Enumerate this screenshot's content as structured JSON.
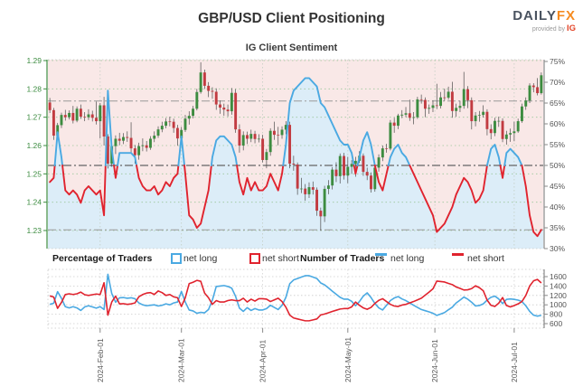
{
  "header": {
    "title": "GBP/USD Client Positioning",
    "logo": {
      "daily": "DAILY",
      "fx": "FX",
      "provided_by": "provided by",
      "ig": "IG"
    }
  },
  "subtitle": "IG Client Sentiment",
  "legend": {
    "pct_group": "Percentage of Traders",
    "num_group": "Number of Traders",
    "net_long": "net long",
    "net_short": "net short"
  },
  "chart_data": {
    "type": [
      "candlestick",
      "line"
    ],
    "title": "IG Client Sentiment",
    "legend_position": "below-main-chart",
    "grid": true,
    "colors": {
      "net_long": "#4aa9e2",
      "net_short": "#e0232e",
      "candle_up": "#3d8c40",
      "candle_down": "#c23b41",
      "wick": "#4d4d4d",
      "fill_long_region": "#dcedf8",
      "fill_short_region": "#f9e8e7",
      "price_axis": "#3c8c40",
      "pct_axis": "#555555",
      "grid_green": "#9cc79c",
      "grid_grey": "#cccccc",
      "ref_line": "#8a8a8a"
    },
    "price_axis": {
      "side": "left",
      "range": [
        1.23,
        1.29
      ],
      "ticks": [
        {
          "v": 1.29,
          "label": "1.29"
        },
        {
          "v": 1.28,
          "label": "1.28"
        },
        {
          "v": 1.27,
          "label": "1.27"
        },
        {
          "v": 1.26,
          "label": "1.26"
        },
        {
          "v": 1.25,
          "label": "1.25"
        },
        {
          "v": 1.24,
          "label": "1.24"
        },
        {
          "v": 1.23,
          "label": "1.23"
        }
      ]
    },
    "pct_axis": {
      "side": "right",
      "range": [
        30,
        75
      ],
      "ticks": [
        {
          "v": 75,
          "label": "75%"
        },
        {
          "v": 70,
          "label": "70%"
        },
        {
          "v": 65,
          "label": "65%"
        },
        {
          "v": 60,
          "label": "60%"
        },
        {
          "v": 55,
          "label": "55%"
        },
        {
          "v": 50,
          "label": "50%"
        },
        {
          "v": 45,
          "label": "45%"
        },
        {
          "v": 40,
          "label": "40%"
        },
        {
          "v": 35,
          "label": "35%"
        },
        {
          "v": 30,
          "label": "30%"
        }
      ]
    },
    "count_axis": {
      "side": "right",
      "range": [
        500,
        1700
      ],
      "ticks": [
        {
          "v": 1600,
          "label": "1600"
        },
        {
          "v": 1400,
          "label": "1400"
        },
        {
          "v": 1200,
          "label": "1200"
        },
        {
          "v": 1000,
          "label": "1000"
        },
        {
          "v": 800,
          "label": "800"
        },
        {
          "v": 600,
          "label": "600"
        }
      ]
    },
    "x_ticks": [
      {
        "label": "2024-Feb-01",
        "i": 13
      },
      {
        "label": "2024-Mar-01",
        "i": 34
      },
      {
        "label": "2024-Apr-01",
        "i": 55
      },
      {
        "label": "2024-May-01",
        "i": 77
      },
      {
        "label": "2024-Jun-01",
        "i": 99.5
      },
      {
        "label": "2024-Jul-01",
        "i": 120
      }
    ],
    "reference_lines_pct": {
      "mid": 50,
      "current_net_short": 65.5,
      "current_net_long": 34.5
    },
    "candles_ohlc": [
      [
        1.2752,
        1.2768,
        1.2715,
        1.2725
      ],
      [
        1.2725,
        1.2733,
        1.262,
        1.2635
      ],
      [
        1.2635,
        1.268,
        1.2625,
        1.2672
      ],
      [
        1.2672,
        1.2716,
        1.2662,
        1.2708
      ],
      [
        1.2708,
        1.2726,
        1.2688,
        1.27
      ],
      [
        1.27,
        1.2724,
        1.2692,
        1.2715
      ],
      [
        1.2715,
        1.274,
        1.2678,
        1.2688
      ],
      [
        1.2688,
        1.2738,
        1.2682,
        1.273
      ],
      [
        1.273,
        1.2745,
        1.2694,
        1.2702
      ],
      [
        1.2702,
        1.2718,
        1.2686,
        1.27
      ],
      [
        1.27,
        1.2728,
        1.269,
        1.271
      ],
      [
        1.271,
        1.2723,
        1.2685,
        1.2698
      ],
      [
        1.2698,
        1.2755,
        1.2674,
        1.2686
      ],
      [
        1.2686,
        1.275,
        1.2625,
        1.2742
      ],
      [
        1.2742,
        1.2772,
        1.26,
        1.2632
      ],
      [
        1.2632,
        1.264,
        1.2519,
        1.2536
      ],
      [
        1.2536,
        1.261,
        1.2525,
        1.2598
      ],
      [
        1.2598,
        1.2636,
        1.257,
        1.2624
      ],
      [
        1.2624,
        1.2645,
        1.2601,
        1.2617
      ],
      [
        1.2617,
        1.2644,
        1.2605,
        1.263
      ],
      [
        1.263,
        1.265,
        1.2613,
        1.2627
      ],
      [
        1.2627,
        1.2682,
        1.2574,
        1.259
      ],
      [
        1.259,
        1.2602,
        1.2536,
        1.2566
      ],
      [
        1.2566,
        1.261,
        1.255,
        1.2598
      ],
      [
        1.2598,
        1.2625,
        1.258,
        1.2601
      ],
      [
        1.2601,
        1.2616,
        1.2579,
        1.2592
      ],
      [
        1.2592,
        1.2633,
        1.2585,
        1.2624
      ],
      [
        1.2624,
        1.265,
        1.2612,
        1.2635
      ],
      [
        1.2635,
        1.2668,
        1.2627,
        1.2657
      ],
      [
        1.2657,
        1.2684,
        1.2647,
        1.267
      ],
      [
        1.267,
        1.2697,
        1.2661,
        1.2685
      ],
      [
        1.2685,
        1.2702,
        1.2668,
        1.2684
      ],
      [
        1.2684,
        1.2695,
        1.2645,
        1.2662
      ],
      [
        1.2662,
        1.2673,
        1.2599,
        1.2625
      ],
      [
        1.2625,
        1.2666,
        1.2614,
        1.2655
      ],
      [
        1.2655,
        1.2708,
        1.2648,
        1.2695
      ],
      [
        1.2695,
        1.2721,
        1.2674,
        1.2705
      ],
      [
        1.2705,
        1.274,
        1.2696,
        1.273
      ],
      [
        1.273,
        1.28,
        1.2724,
        1.2789
      ],
      [
        1.2789,
        1.2894,
        1.2783,
        1.2858
      ],
      [
        1.2858,
        1.2868,
        1.28,
        1.2811
      ],
      [
        1.2811,
        1.2824,
        1.2771,
        1.2793
      ],
      [
        1.2793,
        1.2806,
        1.2765,
        1.279
      ],
      [
        1.279,
        1.2802,
        1.2726,
        1.2745
      ],
      [
        1.2745,
        1.2759,
        1.2712,
        1.2734
      ],
      [
        1.2734,
        1.2748,
        1.2705,
        1.2727
      ],
      [
        1.2727,
        1.2745,
        1.2703,
        1.2721
      ],
      [
        1.2721,
        1.2803,
        1.2709,
        1.2786
      ],
      [
        1.2786,
        1.2799,
        1.2645,
        1.2657
      ],
      [
        1.2657,
        1.2675,
        1.2575,
        1.26
      ],
      [
        1.26,
        1.265,
        1.2583,
        1.2637
      ],
      [
        1.2637,
        1.2649,
        1.2605,
        1.2624
      ],
      [
        1.2624,
        1.2656,
        1.2612,
        1.2641
      ],
      [
        1.2641,
        1.2652,
        1.2608,
        1.2623
      ],
      [
        1.2623,
        1.264,
        1.2611,
        1.2624
      ],
      [
        1.2624,
        1.2638,
        1.254,
        1.2549
      ],
      [
        1.2549,
        1.2588,
        1.252,
        1.2577
      ],
      [
        1.2577,
        1.2661,
        1.2564,
        1.2652
      ],
      [
        1.2652,
        1.2684,
        1.262,
        1.2638
      ],
      [
        1.2638,
        1.2666,
        1.2601,
        1.2637
      ],
      [
        1.2637,
        1.2668,
        1.2624,
        1.2656
      ],
      [
        1.2656,
        1.2686,
        1.264,
        1.2673
      ],
      [
        1.2673,
        1.2684,
        1.252,
        1.2536
      ],
      [
        1.2536,
        1.2564,
        1.2511,
        1.2533
      ],
      [
        1.2533,
        1.254,
        1.2426,
        1.2448
      ],
      [
        1.2448,
        1.2486,
        1.2432,
        1.2448
      ],
      [
        1.2448,
        1.2464,
        1.2405,
        1.2428
      ],
      [
        1.2428,
        1.247,
        1.2415,
        1.2453
      ],
      [
        1.2453,
        1.2473,
        1.2427,
        1.2444
      ],
      [
        1.2444,
        1.2452,
        1.2352,
        1.237
      ],
      [
        1.237,
        1.2381,
        1.2299,
        1.235
      ],
      [
        1.235,
        1.2458,
        1.233,
        1.2447
      ],
      [
        1.2447,
        1.2478,
        1.2428,
        1.2459
      ],
      [
        1.2459,
        1.2524,
        1.2445,
        1.2515
      ],
      [
        1.2515,
        1.2541,
        1.2471,
        1.2492
      ],
      [
        1.2492,
        1.2572,
        1.2466,
        1.2563
      ],
      [
        1.2563,
        1.2574,
        1.248,
        1.2494
      ],
      [
        1.2494,
        1.256,
        1.2467,
        1.2525
      ],
      [
        1.2525,
        1.2548,
        1.25,
        1.2535
      ],
      [
        1.2535,
        1.256,
        1.249,
        1.2546
      ],
      [
        1.2546,
        1.258,
        1.2538,
        1.2564
      ],
      [
        1.2564,
        1.2572,
        1.2493,
        1.2507
      ],
      [
        1.2507,
        1.2522,
        1.2478,
        1.2494
      ],
      [
        1.2494,
        1.2505,
        1.2434,
        1.2446
      ],
      [
        1.2446,
        1.2532,
        1.2437,
        1.2522
      ],
      [
        1.2522,
        1.2569,
        1.2508,
        1.2558
      ],
      [
        1.2558,
        1.26,
        1.2545,
        1.259
      ],
      [
        1.259,
        1.2606,
        1.2575,
        1.2589
      ],
      [
        1.2589,
        1.269,
        1.2583,
        1.2681
      ],
      [
        1.2681,
        1.2698,
        1.2645,
        1.267
      ],
      [
        1.267,
        1.2712,
        1.2658,
        1.2706
      ],
      [
        1.2706,
        1.2725,
        1.2697,
        1.2709
      ],
      [
        1.2709,
        1.2736,
        1.27,
        1.2714
      ],
      [
        1.2714,
        1.2762,
        1.2687,
        1.2698
      ],
      [
        1.2698,
        1.2718,
        1.2675,
        1.27
      ],
      [
        1.27,
        1.2772,
        1.2694,
        1.2763
      ],
      [
        1.2763,
        1.278,
        1.2748,
        1.2761
      ],
      [
        1.2761,
        1.277,
        1.27,
        1.273
      ],
      [
        1.273,
        1.2745,
        1.2712,
        1.2733
      ],
      [
        1.2733,
        1.276,
        1.2718,
        1.2742
      ],
      [
        1.2742,
        1.2818,
        1.2729,
        1.274
      ],
      [
        1.274,
        1.2789,
        1.2731,
        1.277
      ],
      [
        1.277,
        1.2801,
        1.2758,
        1.2769
      ],
      [
        1.2769,
        1.2808,
        1.2762,
        1.279
      ],
      [
        1.279,
        1.2825,
        1.2698,
        1.2722
      ],
      [
        1.2722,
        1.2748,
        1.2702,
        1.2733
      ],
      [
        1.2733,
        1.2758,
        1.2718,
        1.274
      ],
      [
        1.274,
        1.286,
        1.273,
        1.2799
      ],
      [
        1.2799,
        1.281,
        1.2732,
        1.276
      ],
      [
        1.276,
        1.277,
        1.2657,
        1.2686
      ],
      [
        1.2686,
        1.2718,
        1.2668,
        1.2706
      ],
      [
        1.2706,
        1.2722,
        1.2684,
        1.2708
      ],
      [
        1.2708,
        1.2742,
        1.2699,
        1.2719
      ],
      [
        1.2719,
        1.2728,
        1.2636,
        1.2658
      ],
      [
        1.2658,
        1.2675,
        1.2622,
        1.2644
      ],
      [
        1.2644,
        1.2698,
        1.2633,
        1.2687
      ],
      [
        1.2687,
        1.2702,
        1.2666,
        1.2687
      ],
      [
        1.2687,
        1.2696,
        1.2612,
        1.2623
      ],
      [
        1.2623,
        1.2652,
        1.2603,
        1.2639
      ],
      [
        1.2639,
        1.266,
        1.2613,
        1.2644
      ],
      [
        1.2644,
        1.2684,
        1.2615,
        1.265
      ],
      [
        1.265,
        1.2695,
        1.2645,
        1.2686
      ],
      [
        1.2686,
        1.2748,
        1.268,
        1.2738
      ],
      [
        1.2738,
        1.277,
        1.2726,
        1.2759
      ],
      [
        1.2759,
        1.282,
        1.275,
        1.2812
      ],
      [
        1.2812,
        1.282,
        1.2788,
        1.2806
      ],
      [
        1.2806,
        1.2838,
        1.2777,
        1.2785
      ],
      [
        1.2785,
        1.2858,
        1.278,
        1.2848
      ]
    ],
    "net_long_pct": [
      46,
      47,
      58,
      52,
      44,
      43,
      44,
      43,
      41,
      44,
      45,
      44,
      43,
      44,
      38,
      68,
      54,
      47,
      53,
      53,
      53,
      53,
      52,
      47,
      45,
      44,
      44,
      45,
      43,
      44,
      46,
      45,
      47,
      48,
      57,
      48,
      38,
      37,
      35,
      36,
      40,
      44,
      52,
      56,
      57,
      57,
      56,
      55,
      52,
      46,
      43,
      47,
      44,
      46,
      44,
      44,
      45,
      48,
      46,
      44,
      48,
      55,
      65,
      68,
      69,
      70,
      71,
      71,
      70,
      69,
      65,
      64,
      62,
      60,
      58,
      56,
      55,
      55,
      53,
      48,
      52,
      56,
      58,
      55,
      50,
      46,
      44,
      48,
      52,
      54,
      55,
      53,
      52,
      50,
      48,
      46,
      44,
      42,
      40,
      38,
      34,
      35,
      36,
      38,
      40,
      43,
      45,
      47,
      46,
      44,
      41,
      42,
      44,
      50,
      54,
      55,
      52,
      47,
      53,
      54,
      53,
      52,
      50,
      45,
      38,
      34,
      33,
      34.5
    ],
    "long_count": [
      1010,
      1035,
      1280,
      1140,
      960,
      935,
      960,
      935,
      880,
      955,
      980,
      955,
      930,
      960,
      900,
      1650,
      1240,
      1055,
      1150,
      1155,
      1140,
      1150,
      1130,
      1040,
      1000,
      980,
      990,
      1000,
      975,
      990,
      1020,
      1000,
      1040,
      1060,
      1285,
      1060,
      890,
      870,
      820,
      840,
      830,
      900,
      1100,
      1390,
      1400,
      1410,
      1390,
      1355,
      1180,
      930,
      860,
      940,
      880,
      920,
      890,
      890,
      920,
      990,
      945,
      900,
      990,
      1160,
      1450,
      1530,
      1560,
      1590,
      1620,
      1620,
      1590,
      1560,
      1465,
      1425,
      1360,
      1290,
      1225,
      1160,
      1120,
      1120,
      1075,
      980,
      1070,
      1185,
      1255,
      1155,
      1030,
      935,
      890,
      990,
      1090,
      1145,
      1175,
      1125,
      1090,
      1040,
      990,
      945,
      900,
      875,
      850,
      820,
      775,
      805,
      835,
      895,
      950,
      1040,
      1100,
      1165,
      1120,
      1055,
      975,
      985,
      1020,
      1100,
      1160,
      1185,
      1125,
      1025,
      1115,
      1125,
      1115,
      1100,
      1070,
      980,
      860,
      780,
      760,
      775
    ],
    "short_count": [
      1190,
      1165,
      925,
      1050,
      1220,
      1235,
      1220,
      1235,
      1270,
      1215,
      1200,
      1215,
      1230,
      1220,
      1470,
      780,
      1060,
      1185,
      1020,
      1025,
      1010,
      1020,
      1040,
      1170,
      1220,
      1250,
      1260,
      1220,
      1295,
      1260,
      1200,
      1220,
      1170,
      1150,
      965,
      1150,
      1450,
      1480,
      1520,
      1500,
      1250,
      1150,
      1010,
      1090,
      1060,
      1060,
      1090,
      1105,
      1090,
      1090,
      1140,
      1060,
      1120,
      1080,
      1130,
      1130,
      1120,
      1070,
      1105,
      1140,
      1070,
      950,
      780,
      720,
      700,
      680,
      660,
      660,
      680,
      700,
      785,
      805,
      830,
      860,
      885,
      910,
      920,
      920,
      955,
      1060,
      990,
      935,
      905,
      945,
      1030,
      1095,
      1130,
      1070,
      1010,
      975,
      965,
      995,
      1010,
      1040,
      1070,
      1105,
      1140,
      1205,
      1270,
      1340,
      1505,
      1495,
      1485,
      1455,
      1430,
      1380,
      1350,
      1315,
      1320,
      1345,
      1405,
      1365,
      1300,
      1100,
      990,
      965,
      1035,
      1155,
      985,
      955,
      985,
      1020,
      1070,
      1200,
      1400,
      1510,
      1540,
      1465
    ]
  }
}
